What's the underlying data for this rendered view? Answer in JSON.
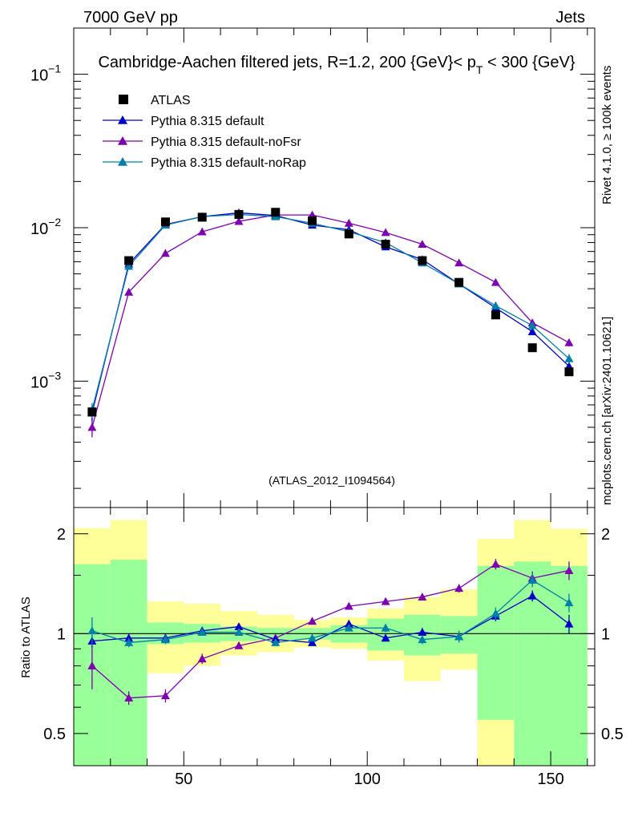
{
  "header": {
    "energy_label": "7000 GeV pp",
    "category_label": "Jets",
    "title_main": "Cambridge-Aachen filtered jets, R=1.2, 200 {GeV}< p",
    "title_sub": "T",
    "title_end": " < 300 {GeV}",
    "side_label_top": "Rivet 4.1.0, ≥ 100k events",
    "side_label_bottom": "mcplots.cern.ch [arXiv:2401.10621]",
    "analysis_label": "(ATLAS_2012_I1094564)",
    "ratio_ylabel": "Ratio to ATLAS"
  },
  "colors": {
    "data": "#000000",
    "default": "#0000cc",
    "noFsr": "#7f00b2",
    "noRap": "#0080a8",
    "band_inner": "#99ff99",
    "band_outer": "#ffff99"
  },
  "chart_data": [
    {
      "type": "scatter",
      "panel": "main",
      "yscale": "log",
      "xlim": [
        20,
        162
      ],
      "ylim": [
        0.00015,
        0.2
      ],
      "yticks": [
        {
          "value": 0.1,
          "label": "10",
          "exp": "−1"
        },
        {
          "value": 0.01,
          "label": "10",
          "exp": "−2"
        },
        {
          "value": 0.001,
          "label": "10",
          "exp": "−3"
        }
      ],
      "x": [
        25,
        35,
        45,
        55,
        65,
        75,
        85,
        95,
        105,
        115,
        125,
        135,
        145,
        155
      ],
      "legend": [
        {
          "key": "data",
          "label": "ATLAS",
          "marker": "square"
        },
        {
          "key": "default",
          "label": "Pythia 8.315 default",
          "marker": "triangle"
        },
        {
          "key": "noFsr",
          "label": "Pythia 8.315 default-noFsr",
          "marker": "triangle"
        },
        {
          "key": "noRap",
          "label": "Pythia 8.315 default-noRap",
          "marker": "triangle"
        }
      ],
      "series": [
        {
          "key": "data",
          "name": "ATLAS",
          "values": [
            0.00063,
            0.0061,
            0.0109,
            0.0117,
            0.0122,
            0.0126,
            0.0111,
            0.0091,
            0.0078,
            0.0061,
            0.0044,
            0.0027,
            0.00165,
            0.00115
          ]
        },
        {
          "key": "default",
          "name": "Pythia 8.315 default",
          "values": [
            0.00062,
            0.0058,
            0.0105,
            0.0118,
            0.0125,
            0.012,
            0.0104,
            0.0097,
            0.0075,
            0.0062,
            0.0043,
            0.003,
            0.0021,
            0.00125
          ],
          "errors": [
            7e-05,
            0.0002,
            0.0002,
            0.0002,
            0.0002,
            0.0002,
            0.0002,
            0.0002,
            0.0002,
            0.0002,
            0.0001,
            0.0001,
            8e-05,
            8e-05
          ]
        },
        {
          "key": "noFsr",
          "name": "Pythia 8.315 default-noFsr",
          "values": [
            0.0005,
            0.0038,
            0.0068,
            0.0094,
            0.011,
            0.0121,
            0.0121,
            0.0107,
            0.0093,
            0.0078,
            0.0059,
            0.0044,
            0.0024,
            0.00178
          ],
          "errors": [
            7e-05,
            0.00015,
            0.0002,
            0.0002,
            0.0002,
            0.0002,
            0.0002,
            0.0002,
            0.0002,
            0.0002,
            0.0001,
            0.0001,
            0.0001,
            0.0001
          ]
        },
        {
          "key": "noRap",
          "name": "Pythia 8.315 default-noRap",
          "values": [
            0.00065,
            0.0056,
            0.0104,
            0.0118,
            0.0122,
            0.0118,
            0.0107,
            0.0094,
            0.008,
            0.0059,
            0.0043,
            0.0031,
            0.0023,
            0.0014
          ],
          "errors": [
            7e-05,
            0.0002,
            0.0002,
            0.0002,
            0.0002,
            0.0002,
            0.0002,
            0.0002,
            0.0002,
            0.0002,
            0.0001,
            0.0001,
            0.0001,
            0.0001
          ]
        }
      ]
    },
    {
      "type": "line",
      "panel": "ratio",
      "yscale": "log",
      "xlabel": "",
      "ylabel": "Ratio to ATLAS",
      "xlim": [
        20,
        162
      ],
      "ylim": [
        0.4,
        2.4
      ],
      "xticks": [
        {
          "value": 50,
          "label": "50"
        },
        {
          "value": 100,
          "label": "100"
        },
        {
          "value": 150,
          "label": "150"
        }
      ],
      "yticks": [
        {
          "value": 2,
          "label": "2"
        },
        {
          "value": 1,
          "label": "1"
        },
        {
          "value": 0.5,
          "label": "0.5"
        }
      ],
      "bins": [
        [
          20,
          30
        ],
        [
          30,
          40
        ],
        [
          40,
          50
        ],
        [
          50,
          60
        ],
        [
          60,
          70
        ],
        [
          70,
          80
        ],
        [
          80,
          90
        ],
        [
          90,
          100
        ],
        [
          100,
          110
        ],
        [
          110,
          120
        ],
        [
          120,
          130
        ],
        [
          130,
          140
        ],
        [
          140,
          150
        ],
        [
          150,
          160
        ]
      ],
      "band_inner": [
        [
          0.4,
          1.62
        ],
        [
          0.4,
          1.67
        ],
        [
          0.93,
          1.08
        ],
        [
          0.94,
          1.07
        ],
        [
          0.95,
          1.05
        ],
        [
          0.96,
          1.04
        ],
        [
          0.96,
          1.04
        ],
        [
          0.94,
          1.06
        ],
        [
          0.89,
          1.11
        ],
        [
          0.86,
          1.14
        ],
        [
          0.87,
          1.13
        ],
        [
          0.55,
          1.6
        ],
        [
          0.4,
          1.65
        ],
        [
          0.4,
          1.6
        ]
      ],
      "band_outer": [
        [
          0.47,
          2.08
        ],
        [
          0.4,
          2.2
        ],
        [
          0.76,
          1.25
        ],
        [
          0.8,
          1.23
        ],
        [
          0.86,
          1.17
        ],
        [
          0.88,
          1.14
        ],
        [
          0.91,
          1.1
        ],
        [
          0.9,
          1.12
        ],
        [
          0.83,
          1.19
        ],
        [
          0.72,
          1.29
        ],
        [
          0.78,
          1.36
        ],
        [
          0.4,
          1.93
        ],
        [
          0.4,
          2.2
        ],
        [
          0.46,
          2.07
        ]
      ],
      "x": [
        25,
        35,
        45,
        55,
        65,
        75,
        85,
        95,
        105,
        115,
        125,
        135,
        145,
        155
      ],
      "series": [
        {
          "key": "default",
          "name": "Pythia 8.315 default",
          "values": [
            0.95,
            0.97,
            0.97,
            1.02,
            1.05,
            0.96,
            0.94,
            1.07,
            0.97,
            1.01,
            0.98,
            1.13,
            1.3,
            1.07
          ],
          "errors": [
            0.04,
            0.03,
            0.03,
            0.02,
            0.02,
            0.02,
            0.02,
            0.02,
            0.02,
            0.03,
            0.03,
            0.04,
            0.05,
            0.07
          ]
        },
        {
          "key": "noFsr",
          "name": "Pythia 8.315 default-noFsr",
          "values": [
            0.8,
            0.64,
            0.65,
            0.84,
            0.92,
            0.97,
            1.09,
            1.21,
            1.25,
            1.29,
            1.37,
            1.62,
            1.47,
            1.55
          ],
          "errors": [
            0.12,
            0.03,
            0.03,
            0.03,
            0.02,
            0.02,
            0.02,
            0.02,
            0.03,
            0.03,
            0.04,
            0.06,
            0.07,
            0.1
          ]
        },
        {
          "key": "noRap",
          "name": "Pythia 8.315 default-noRap",
          "values": [
            1.02,
            0.94,
            0.96,
            1.01,
            1.01,
            0.94,
            0.97,
            1.04,
            1.04,
            0.96,
            0.98,
            1.15,
            1.45,
            1.24
          ],
          "errors": [
            0.1,
            0.03,
            0.03,
            0.02,
            0.02,
            0.02,
            0.02,
            0.02,
            0.03,
            0.03,
            0.04,
            0.05,
            0.07,
            0.08
          ]
        }
      ]
    }
  ]
}
